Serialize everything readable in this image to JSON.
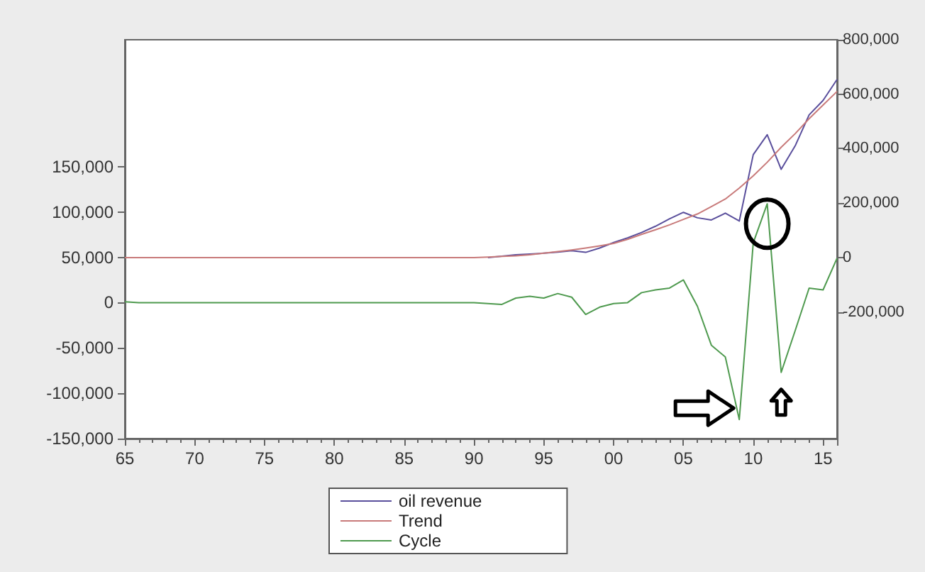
{
  "chart_data": {
    "type": "line",
    "x": [
      1965,
      1966,
      1967,
      1968,
      1969,
      1970,
      1971,
      1972,
      1973,
      1974,
      1975,
      1976,
      1977,
      1978,
      1979,
      1980,
      1981,
      1982,
      1983,
      1984,
      1985,
      1986,
      1987,
      1988,
      1989,
      1990,
      1991,
      1992,
      1993,
      1994,
      1995,
      1996,
      1997,
      1998,
      1999,
      2000,
      2001,
      2002,
      2003,
      2004,
      2005,
      2006,
      2007,
      2008,
      2009,
      2010,
      2011,
      2012,
      2013,
      2014,
      2015,
      2016
    ],
    "series": [
      {
        "name": "oil revenue",
        "color": "#5a4f9c",
        "axis": "y2",
        "values": [
          null,
          null,
          null,
          null,
          null,
          null,
          null,
          null,
          null,
          null,
          null,
          null,
          null,
          null,
          null,
          null,
          null,
          null,
          null,
          null,
          null,
          null,
          null,
          null,
          null,
          null,
          0,
          5000,
          10000,
          13000,
          16000,
          20000,
          25000,
          19000,
          35000,
          55000,
          72000,
          92000,
          115000,
          142000,
          166000,
          146000,
          138000,
          163000,
          134000,
          378000,
          451000,
          324000,
          410000,
          524000,
          577000,
          654000
        ]
      },
      {
        "name": "Trend",
        "color": "#c87a7a",
        "axis": "y2",
        "values": [
          0,
          0,
          0,
          0,
          0,
          0,
          0,
          0,
          0,
          0,
          0,
          0,
          0,
          0,
          0,
          0,
          0,
          0,
          0,
          0,
          0,
          0,
          0,
          0,
          0,
          0,
          2000,
          4000,
          6000,
          10000,
          16000,
          22000,
          28000,
          35000,
          43000,
          52000,
          67000,
          85000,
          102000,
          120000,
          140000,
          160000,
          187000,
          215000,
          255000,
          300000,
          350000,
          405000,
          455000,
          510000,
          560000,
          610000
        ]
      },
      {
        "name": "Cycle",
        "color": "#4f9a4f",
        "values": [
          1000,
          0,
          0,
          0,
          0,
          0,
          0,
          0,
          0,
          0,
          0,
          0,
          0,
          0,
          0,
          0,
          0,
          0,
          0,
          0,
          0,
          0,
          0,
          0,
          0,
          0,
          -1000,
          -2000,
          5000,
          7000,
          5000,
          10000,
          6000,
          -13000,
          -5000,
          -1000,
          0,
          11000,
          14000,
          16000,
          25000,
          -4000,
          -47000,
          -60000,
          -129000,
          66000,
          109000,
          -77000,
          -31000,
          16000,
          14000,
          49000
        ]
      }
    ],
    "xlim": [
      1965,
      2016
    ],
    "xticks": [
      {
        "value": 1965,
        "label": "65"
      },
      {
        "value": 1970,
        "label": "70"
      },
      {
        "value": 1975,
        "label": "75"
      },
      {
        "value": 1980,
        "label": "80"
      },
      {
        "value": 1985,
        "label": "85"
      },
      {
        "value": 1990,
        "label": "90"
      },
      {
        "value": 1995,
        "label": "95"
      },
      {
        "value": 2000,
        "label": "00"
      },
      {
        "value": 2005,
        "label": "05"
      },
      {
        "value": 2010,
        "label": "10"
      },
      {
        "value": 2015,
        "label": "15"
      }
    ],
    "ylim": [
      -150000,
      290000
    ],
    "yticks": [
      {
        "value": -150000,
        "label": "-150,000"
      },
      {
        "value": -100000,
        "label": "-100,000"
      },
      {
        "value": -50000,
        "label": "-50,000"
      },
      {
        "value": 0,
        "label": "0"
      },
      {
        "value": 50000,
        "label": "50,000"
      },
      {
        "value": 100000,
        "label": "100,000"
      },
      {
        "value": 150000,
        "label": "150,000"
      }
    ],
    "y2lim": [
      -665000,
      800000
    ],
    "y2ticks": [
      {
        "value": -200000,
        "label": "-200,000"
      },
      {
        "value": 0,
        "label": "0"
      },
      {
        "value": 200000,
        "label": "200,000"
      },
      {
        "value": 400000,
        "label": "400,000"
      },
      {
        "value": 600000,
        "label": "600,000"
      },
      {
        "value": 800000,
        "label": "800,000"
      }
    ],
    "grid": false,
    "legend": "bottom",
    "marker": "none",
    "line_style": "solid"
  }
}
